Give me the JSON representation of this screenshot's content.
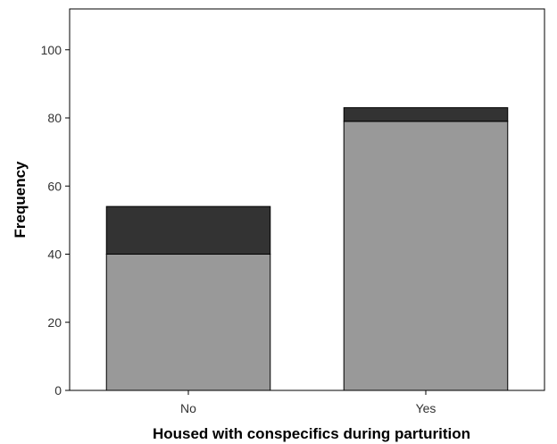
{
  "chart_data": {
    "type": "bar",
    "stacked": true,
    "categories": [
      "No",
      "Yes"
    ],
    "series": [
      {
        "values": [
          40,
          79
        ],
        "color": "#999999"
      },
      {
        "values": [
          14,
          4
        ],
        "color": "#333333"
      }
    ],
    "xlabel": "Housed with conspecifics during parturition",
    "ylabel": "Frequency",
    "ylim": [
      0,
      112
    ],
    "yticks": [
      0,
      20,
      40,
      60,
      80,
      100
    ],
    "grid": false,
    "legend": "none"
  }
}
